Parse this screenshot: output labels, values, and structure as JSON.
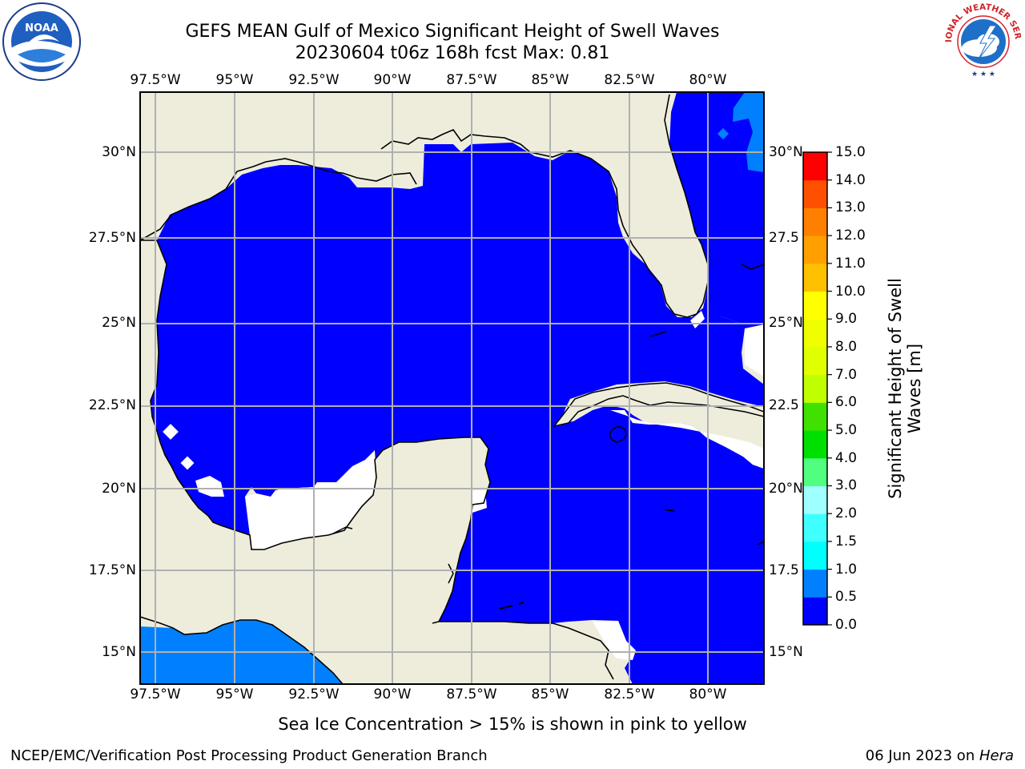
{
  "header": {
    "title_line1": "GEFS MEAN Gulf of Mexico Significant Height of Swell Waves",
    "title_line2": "20230604 t06z 168h fcst   Max: 0.81"
  },
  "logos": {
    "left": "NOAA",
    "right": "NATIONAL WEATHER SERVICE"
  },
  "map": {
    "lon_ticks_top": [
      "97.5°W",
      "95°W",
      "92.5°W",
      "90°W",
      "87.5°W",
      "85°W",
      "82.5°W",
      "80°W"
    ],
    "lon_ticks_bottom": [
      "97.5°W",
      "95°W",
      "92.5°W",
      "90°W",
      "87.5°W",
      "85°W",
      "82.5°W",
      "80°W"
    ],
    "lat_ticks_left": [
      "30°N",
      "27.5°N",
      "25°N",
      "22.5°N",
      "20°N",
      "17.5°N",
      "15°N"
    ],
    "lat_ticks_right": [
      "30°N",
      "27.5",
      "25°N",
      "22.5",
      "20°N",
      "17.5",
      "15°N"
    ],
    "colors": {
      "land": "#eeeddc",
      "sea_low": "#0000ff",
      "sea_mid": "#0080ff",
      "gridline": "#b0b0b0",
      "coast": "#000000"
    }
  },
  "colorbar": {
    "title": "Significant Height of Swell Waves [m]",
    "tick_labels": [
      "15.0",
      "14.0",
      "13.0",
      "12.0",
      "11.0",
      "10.0",
      "9.0",
      "8.0",
      "7.0",
      "6.0",
      "5.0",
      "4.0",
      "3.0",
      "2.0",
      "1.5",
      "1.0",
      "0.5",
      "0.0"
    ],
    "bands": [
      {
        "from": 0.0,
        "to": 0.5,
        "color": "#0000ff"
      },
      {
        "from": 0.5,
        "to": 1.0,
        "color": "#0080ff"
      },
      {
        "from": 1.0,
        "to": 1.5,
        "color": "#00ffff"
      },
      {
        "from": 1.5,
        "to": 2.0,
        "color": "#40ffff"
      },
      {
        "from": 2.0,
        "to": 3.0,
        "color": "#a0ffff"
      },
      {
        "from": 3.0,
        "to": 4.0,
        "color": "#50ff80"
      },
      {
        "from": 4.0,
        "to": 5.0,
        "color": "#00e000"
      },
      {
        "from": 5.0,
        "to": 6.0,
        "color": "#40e000"
      },
      {
        "from": 6.0,
        "to": 7.0,
        "color": "#c0ff00"
      },
      {
        "from": 7.0,
        "to": 8.0,
        "color": "#e0ff00"
      },
      {
        "from": 8.0,
        "to": 9.0,
        "color": "#f0ff00"
      },
      {
        "from": 9.0,
        "to": 10.0,
        "color": "#ffff00"
      },
      {
        "from": 10.0,
        "to": 11.0,
        "color": "#ffc000"
      },
      {
        "from": 11.0,
        "to": 12.0,
        "color": "#ffa000"
      },
      {
        "from": 12.0,
        "to": 13.0,
        "color": "#ff8000"
      },
      {
        "from": 13.0,
        "to": 14.0,
        "color": "#ff5000"
      },
      {
        "from": 14.0,
        "to": 15.0,
        "color": "#ff0000"
      }
    ]
  },
  "note": "Sea Ice Concentration > 15% is shown in pink to yellow",
  "footer": {
    "left": "NCEP/EMC/Verification Post Processing Product Generation Branch",
    "right_date": "06 Jun 2023 on ",
    "right_host": "Hera"
  }
}
